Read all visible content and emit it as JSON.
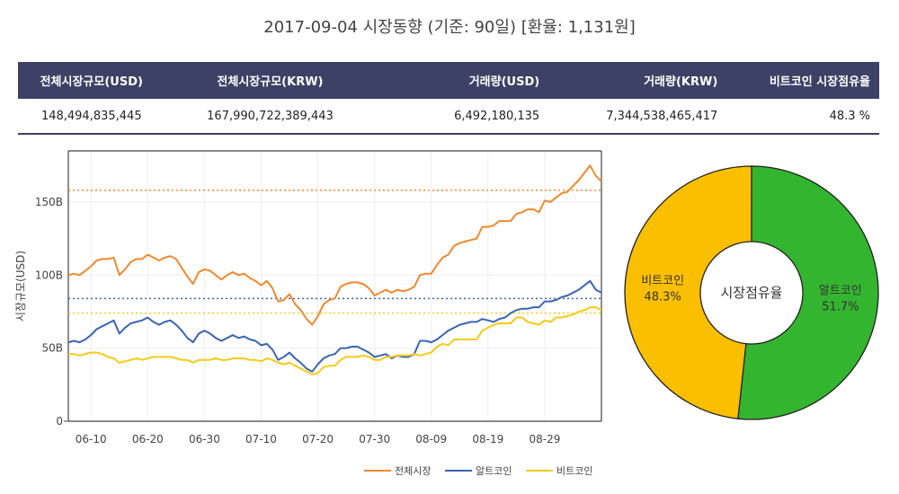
{
  "header": {
    "title": "2017-09-04 시장동향 (기준: 90일)   [환율: 1,131원]"
  },
  "stats_table": {
    "columns": [
      "전체시장규모(USD)",
      "전체시장규모(KRW)",
      "거래량(USD)",
      "거래량(KRW)",
      "비트코인 시장점유율"
    ],
    "row": [
      "148,494,835,445",
      "167,990,722,389,443",
      "6,492,180,135",
      "7,344,538,465,417",
      "48.3 %"
    ]
  },
  "chart_data": [
    {
      "type": "line",
      "ylabel": "시장규모(USD)",
      "ylim": [
        0,
        185
      ],
      "y_ticks": [
        0,
        50,
        100,
        150
      ],
      "y_tick_labels": [
        "0",
        "50B",
        "100B",
        "150B"
      ],
      "x_tick_labels": [
        "06-10",
        "06-20",
        "06-30",
        "07-10",
        "07-20",
        "07-30",
        "08-09",
        "08-19",
        "08-29"
      ],
      "x_tick_indices": [
        4,
        14,
        24,
        34,
        44,
        54,
        64,
        74,
        84
      ],
      "grid": true,
      "legend_position": "bottom-right",
      "series": [
        {
          "name": "전체시장",
          "color": "#f0892e",
          "reference_value": 158,
          "values": [
            100,
            101,
            100,
            103,
            106,
            110,
            111,
            111,
            112,
            100,
            104,
            109,
            111,
            111,
            114,
            112,
            110,
            112,
            113,
            111,
            105,
            99,
            94,
            102,
            104,
            103,
            100,
            97,
            100,
            102,
            100,
            101,
            98,
            96,
            93,
            96,
            91,
            82,
            83,
            87,
            80,
            76,
            70,
            66,
            72,
            80,
            83,
            84,
            92,
            94,
            95,
            95,
            94,
            91,
            86,
            88,
            90,
            88,
            90,
            89,
            90,
            92,
            100,
            101,
            101,
            107,
            112,
            114,
            120,
            122,
            123,
            124,
            125,
            133,
            133,
            134,
            137,
            137,
            137,
            142,
            143,
            145,
            145,
            143,
            151,
            150,
            153,
            156,
            157,
            161,
            165,
            170,
            175,
            168,
            164
          ]
        },
        {
          "name": "알트코인",
          "color": "#3a64b4",
          "reference_value": 84,
          "values": [
            54,
            55,
            54,
            56,
            59,
            63,
            65,
            67,
            69,
            60,
            64,
            67,
            68,
            69,
            71,
            68,
            66,
            68,
            69,
            66,
            62,
            57,
            54,
            60,
            62,
            60,
            57,
            55,
            57,
            59,
            57,
            58,
            56,
            55,
            52,
            53,
            49,
            42,
            44,
            47,
            43,
            40,
            36,
            34,
            39,
            43,
            45,
            46,
            50,
            50,
            51,
            51,
            49,
            47,
            44,
            45,
            46,
            43,
            45,
            44,
            44,
            46,
            55,
            55,
            54,
            56,
            59,
            62,
            64,
            66,
            67,
            68,
            68,
            70,
            69,
            68,
            70,
            71,
            74,
            76,
            77,
            77,
            78,
            78,
            82,
            82,
            83,
            85,
            86,
            88,
            90,
            93,
            96,
            90,
            88
          ]
        },
        {
          "name": "비트코인",
          "color": "#f5cb17",
          "reference_value": 74,
          "values": [
            46,
            46,
            45,
            46,
            47,
            47,
            46,
            44,
            43,
            40,
            41,
            42,
            43,
            42,
            43,
            44,
            44,
            44,
            44,
            43,
            42,
            42,
            40,
            42,
            42,
            42,
            43,
            42,
            42,
            43,
            43,
            43,
            42,
            42,
            41,
            43,
            42,
            40,
            39,
            40,
            38,
            36,
            34,
            32,
            33,
            37,
            38,
            38,
            42,
            44,
            44,
            44,
            45,
            44,
            42,
            42,
            44,
            44,
            45,
            45,
            45,
            46,
            45,
            46,
            47,
            51,
            53,
            52,
            56,
            56,
            56,
            56,
            56,
            62,
            64,
            66,
            67,
            67,
            67,
            71,
            71,
            68,
            67,
            66,
            69,
            68,
            71,
            71,
            72,
            73,
            75,
            76,
            78,
            78,
            76
          ]
        }
      ]
    },
    {
      "type": "pie",
      "center_label": "시장점유율",
      "slices": [
        {
          "label": "비트코인",
          "value": 48.3,
          "percent_label": "48.3%",
          "color": "#fbbf01"
        },
        {
          "label": "알트코인",
          "value": 51.7,
          "percent_label": "51.7%",
          "color": "#34b530"
        }
      ]
    }
  ]
}
